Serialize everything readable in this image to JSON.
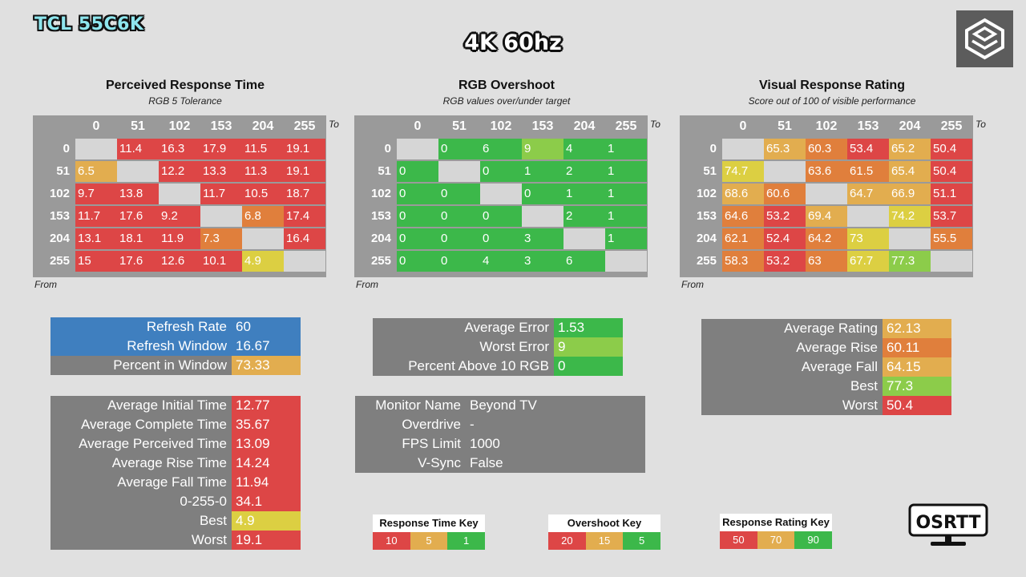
{
  "header": {
    "monitor_badge": "TCL 55C6K",
    "title": "4K 60hz"
  },
  "colors": {
    "red": "#dd4646",
    "orange": "#e07f3c",
    "amber": "#e2ad4f",
    "yellow": "#dccf42",
    "lightgreen": "#8ccc4a",
    "green": "#3cb84a",
    "empty": "#d6d6d6",
    "gray": "#7f7f7f",
    "blue": "#3f7fbf"
  },
  "chart_data": [
    {
      "type": "heatmap",
      "title": "Perceived Response Time",
      "subtitle": "RGB 5 Tolerance",
      "to_label": "To",
      "from_label": "From",
      "levels": [
        "0",
        "51",
        "102",
        "153",
        "204",
        "255"
      ],
      "cells": [
        [
          null,
          11.4,
          16.3,
          17.9,
          11.5,
          19.1
        ],
        [
          6.5,
          null,
          12.2,
          13.3,
          11.3,
          19.1
        ],
        [
          9.7,
          13.8,
          null,
          11.7,
          10.5,
          18.7
        ],
        [
          11.7,
          17.6,
          9.2,
          null,
          6.8,
          17.4
        ],
        [
          13.1,
          18.1,
          11.9,
          7.3,
          null,
          16.4
        ],
        [
          15,
          17.6,
          12.6,
          10.1,
          4.9,
          null
        ]
      ],
      "cell_colors": [
        [
          null,
          "red",
          "red",
          "red",
          "red",
          "red"
        ],
        [
          "amber",
          null,
          "red",
          "red",
          "red",
          "red"
        ],
        [
          "red",
          "red",
          null,
          "red",
          "red",
          "red"
        ],
        [
          "red",
          "red",
          "red",
          null,
          "orange",
          "red"
        ],
        [
          "red",
          "red",
          "red",
          "orange",
          null,
          "red"
        ],
        [
          "red",
          "red",
          "red",
          "red",
          "yellow",
          null
        ]
      ]
    },
    {
      "type": "heatmap",
      "title": "RGB Overshoot",
      "subtitle": "RGB values over/under target",
      "to_label": "To",
      "from_label": "From",
      "levels": [
        "0",
        "51",
        "102",
        "153",
        "204",
        "255"
      ],
      "cells": [
        [
          null,
          0,
          6,
          9,
          4,
          1
        ],
        [
          0,
          null,
          0,
          1,
          2,
          1
        ],
        [
          0,
          0,
          null,
          0,
          1,
          1
        ],
        [
          0,
          0,
          0,
          null,
          2,
          1
        ],
        [
          0,
          0,
          0,
          3,
          null,
          1
        ],
        [
          0,
          0,
          4,
          3,
          6,
          null
        ]
      ],
      "cell_colors": [
        [
          null,
          "green",
          "green",
          "lightgreen",
          "green",
          "green"
        ],
        [
          "green",
          null,
          "green",
          "green",
          "green",
          "green"
        ],
        [
          "green",
          "green",
          null,
          "green",
          "green",
          "green"
        ],
        [
          "green",
          "green",
          "green",
          null,
          "green",
          "green"
        ],
        [
          "green",
          "green",
          "green",
          "green",
          null,
          "green"
        ],
        [
          "green",
          "green",
          "green",
          "green",
          "green",
          null
        ]
      ]
    },
    {
      "type": "heatmap",
      "title": "Visual Response Rating",
      "subtitle": "Score out of 100 of visible performance",
      "to_label": "To",
      "from_label": "From",
      "levels": [
        "0",
        "51",
        "102",
        "153",
        "204",
        "255"
      ],
      "cells": [
        [
          null,
          65.3,
          60.3,
          53.4,
          65.2,
          50.4
        ],
        [
          74.7,
          null,
          63.6,
          61.5,
          65.4,
          50.4
        ],
        [
          68.6,
          60.6,
          null,
          64.7,
          66.9,
          51.1
        ],
        [
          64.6,
          53.2,
          69.4,
          null,
          74.2,
          53.7
        ],
        [
          62.1,
          52.4,
          64.2,
          73,
          null,
          55.5
        ],
        [
          58.3,
          53.2,
          63,
          67.7,
          77.3,
          null
        ]
      ],
      "cell_colors": [
        [
          null,
          "amber",
          "orange",
          "red",
          "amber",
          "red"
        ],
        [
          "yellow",
          null,
          "orange",
          "orange",
          "amber",
          "red"
        ],
        [
          "amber",
          "orange",
          null,
          "amber",
          "amber",
          "red"
        ],
        [
          "orange",
          "red",
          "amber",
          null,
          "yellow",
          "red"
        ],
        [
          "orange",
          "red",
          "orange",
          "yellow",
          null,
          "orange"
        ],
        [
          "orange",
          "red",
          "orange",
          "yellow",
          "lightgreen",
          null
        ]
      ]
    }
  ],
  "refresh_table": [
    {
      "label": "Refresh Rate",
      "value": "60",
      "label_color": "blue",
      "value_color": "blue"
    },
    {
      "label": "Refresh Window",
      "value": "16.67",
      "label_color": "blue",
      "value_color": "blue"
    },
    {
      "label": "Percent in Window",
      "value": "73.33",
      "label_color": "gray",
      "value_color": "amber"
    }
  ],
  "time_table": [
    {
      "label": "Average Initial Time",
      "value": "12.77",
      "value_color": "red"
    },
    {
      "label": "Average Complete Time",
      "value": "35.67",
      "value_color": "red"
    },
    {
      "label": "Average Perceived Time",
      "value": "13.09",
      "value_color": "red"
    },
    {
      "label": "Average Rise Time",
      "value": "14.24",
      "value_color": "red"
    },
    {
      "label": "Average Fall Time",
      "value": "11.94",
      "value_color": "red"
    },
    {
      "label": "0-255-0",
      "value": "34.1",
      "value_color": "red"
    },
    {
      "label": "Best",
      "value": "4.9",
      "value_color": "yellow"
    },
    {
      "label": "Worst",
      "value": "19.1",
      "value_color": "red"
    }
  ],
  "error_table": [
    {
      "label": "Average Error",
      "value": "1.53",
      "value_color": "green"
    },
    {
      "label": "Worst Error",
      "value": "9",
      "value_color": "lightgreen"
    },
    {
      "label": "Percent Above 10 RGB",
      "value": "0",
      "value_color": "green"
    }
  ],
  "monitor_table": [
    {
      "label": "Monitor Name",
      "value": "Beyond TV"
    },
    {
      "label": "Overdrive",
      "value": "-"
    },
    {
      "label": "FPS Limit",
      "value": "1000"
    },
    {
      "label": "V-Sync",
      "value": "False"
    }
  ],
  "rating_table": [
    {
      "label": "Average Rating",
      "value": "62.13",
      "value_color": "amber"
    },
    {
      "label": "Average Rise",
      "value": "60.11",
      "value_color": "orange"
    },
    {
      "label": "Average Fall",
      "value": "64.15",
      "value_color": "amber"
    },
    {
      "label": "Best",
      "value": "77.3",
      "value_color": "lightgreen"
    },
    {
      "label": "Worst",
      "value": "50.4",
      "value_color": "red"
    }
  ],
  "keys": [
    {
      "title": "Response Time Key",
      "values": [
        "10",
        "5",
        "1"
      ],
      "colors": [
        "red",
        "amber",
        "green"
      ]
    },
    {
      "title": "Overshoot Key",
      "values": [
        "20",
        "15",
        "5"
      ],
      "colors": [
        "red",
        "amber",
        "green"
      ]
    },
    {
      "title": "Response Rating Key",
      "values": [
        "50",
        "70",
        "90"
      ],
      "colors": [
        "red",
        "amber",
        "green"
      ]
    }
  ],
  "brand": {
    "osrtt_logo": "OSRTT",
    "corner_logo_icon": "cube-logo-icon"
  }
}
